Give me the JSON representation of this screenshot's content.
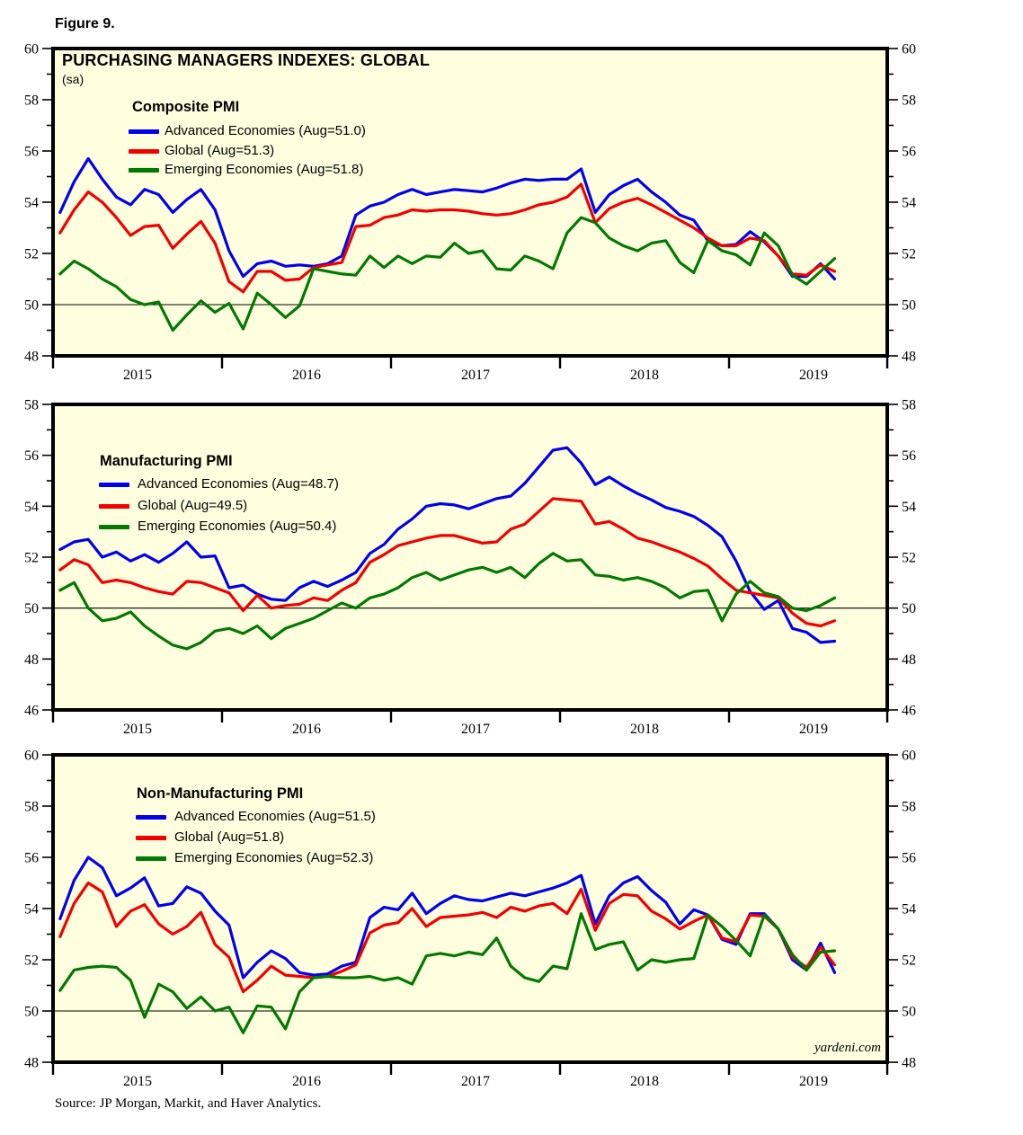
{
  "figure_label": "Figure 9.",
  "header": {
    "title": "PURCHASING MANAGERS INDEXES: GLOBAL",
    "subtitle": "(sa)"
  },
  "footer": {
    "source": "Source: JP Morgan, Markit, and Haver Analytics.",
    "watermark": "yardeni.com"
  },
  "colors": {
    "advanced": "#0101EC",
    "global": "#F20000",
    "emerging": "#017A01",
    "plot_background": "#FFFFDF",
    "axis": "#000000"
  },
  "x_axis": {
    "years": [
      "2015",
      "2016",
      "2017",
      "2018",
      "2019"
    ],
    "unit": "month",
    "start": "2015-01",
    "end": "2019-08"
  },
  "chart_data": [
    {
      "type": "line",
      "title": "Composite PMI",
      "ylim": [
        48,
        60
      ],
      "yticks": [
        48,
        50,
        52,
        54,
        56,
        58,
        60
      ],
      "baseline": 50,
      "grid": "baseline-only",
      "legend_position": "top-left-inside",
      "series": [
        {
          "name": "Advanced Economies (Aug=51.0)",
          "color": "#0101EC",
          "values": [
            53.6,
            54.8,
            55.7,
            54.9,
            54.2,
            53.9,
            54.5,
            54.3,
            53.6,
            54.1,
            54.5,
            53.7,
            52.1,
            51.1,
            51.6,
            51.7,
            51.5,
            51.55,
            51.5,
            51.6,
            51.9,
            53.5,
            53.85,
            54.0,
            54.3,
            54.5,
            54.3,
            54.4,
            54.5,
            54.45,
            54.4,
            54.55,
            54.75,
            54.9,
            54.85,
            54.9,
            54.9,
            55.3,
            53.6,
            54.3,
            54.65,
            54.9,
            54.4,
            54.0,
            53.5,
            53.3,
            52.5,
            52.3,
            52.35,
            52.85,
            52.45,
            51.9,
            51.1,
            51.1,
            51.6,
            51.0
          ]
        },
        {
          "name": "Global (Aug=51.3)",
          "color": "#F20000",
          "values": [
            52.8,
            53.7,
            54.4,
            54.0,
            53.4,
            52.7,
            53.05,
            53.1,
            52.2,
            52.75,
            53.25,
            52.4,
            50.9,
            50.5,
            51.3,
            51.3,
            50.95,
            51.0,
            51.45,
            51.55,
            51.65,
            53.05,
            53.1,
            53.4,
            53.5,
            53.7,
            53.65,
            53.7,
            53.7,
            53.65,
            53.55,
            53.5,
            53.55,
            53.7,
            53.9,
            54.0,
            54.2,
            54.7,
            53.2,
            53.75,
            54.0,
            54.15,
            53.9,
            53.6,
            53.3,
            53.0,
            52.6,
            52.3,
            52.3,
            52.6,
            52.5,
            51.9,
            51.2,
            51.15,
            51.55,
            51.3
          ]
        },
        {
          "name": "Emerging Economies (Aug=51.8)",
          "color": "#017A01",
          "values": [
            51.2,
            51.7,
            51.4,
            51.0,
            50.7,
            50.2,
            50.0,
            50.1,
            49.0,
            49.6,
            50.15,
            49.7,
            50.05,
            49.05,
            50.45,
            50.0,
            49.5,
            49.95,
            51.4,
            51.3,
            51.2,
            51.15,
            51.9,
            51.45,
            51.9,
            51.6,
            51.9,
            51.85,
            52.4,
            52.0,
            52.1,
            51.4,
            51.35,
            51.9,
            51.7,
            51.4,
            52.8,
            53.4,
            53.2,
            52.6,
            52.3,
            52.1,
            52.4,
            52.5,
            51.65,
            51.25,
            52.5,
            52.1,
            51.95,
            51.55,
            52.8,
            52.3,
            51.15,
            50.8,
            51.3,
            51.8
          ]
        }
      ]
    },
    {
      "type": "line",
      "title": "Manufacturing PMI",
      "ylim": [
        46,
        58
      ],
      "yticks": [
        46,
        48,
        50,
        52,
        54,
        56,
        58
      ],
      "baseline": 50,
      "grid": "baseline-only",
      "legend_position": "top-left-inside",
      "series": [
        {
          "name": "Advanced Economies (Aug=48.7)",
          "color": "#0101EC",
          "values": [
            52.3,
            52.6,
            52.7,
            52.0,
            52.2,
            51.85,
            52.1,
            51.8,
            52.15,
            52.6,
            52.0,
            52.05,
            50.8,
            50.9,
            50.55,
            50.35,
            50.3,
            50.8,
            51.05,
            50.85,
            51.1,
            51.4,
            52.15,
            52.5,
            53.1,
            53.5,
            54.0,
            54.1,
            54.05,
            53.9,
            54.1,
            54.3,
            54.4,
            54.9,
            55.55,
            56.2,
            56.3,
            55.7,
            54.85,
            55.15,
            54.8,
            54.5,
            54.25,
            53.95,
            53.8,
            53.6,
            53.25,
            52.8,
            51.85,
            50.65,
            49.95,
            50.3,
            49.2,
            49.05,
            48.65,
            48.7
          ]
        },
        {
          "name": "Global (Aug=49.5)",
          "color": "#F20000",
          "values": [
            51.5,
            51.9,
            51.7,
            51.0,
            51.1,
            51.0,
            50.8,
            50.65,
            50.55,
            51.05,
            51.0,
            50.8,
            50.6,
            49.9,
            50.5,
            50.0,
            50.1,
            50.15,
            50.4,
            50.3,
            50.7,
            51.0,
            51.8,
            52.1,
            52.45,
            52.6,
            52.75,
            52.85,
            52.85,
            52.7,
            52.55,
            52.6,
            53.1,
            53.3,
            53.8,
            54.3,
            54.25,
            54.2,
            53.3,
            53.4,
            53.1,
            52.75,
            52.6,
            52.4,
            52.2,
            51.95,
            51.65,
            51.15,
            50.7,
            50.6,
            50.5,
            50.4,
            49.8,
            49.4,
            49.3,
            49.5
          ]
        },
        {
          "name": "Emerging Economies (Aug=50.4)",
          "color": "#017A01",
          "values": [
            50.7,
            51.0,
            50.0,
            49.5,
            49.6,
            49.85,
            49.3,
            48.9,
            48.55,
            48.4,
            48.65,
            49.1,
            49.2,
            49.0,
            49.3,
            48.8,
            49.2,
            49.4,
            49.6,
            49.9,
            50.2,
            50.0,
            50.4,
            50.55,
            50.8,
            51.2,
            51.4,
            51.1,
            51.3,
            51.5,
            51.6,
            51.4,
            51.6,
            51.2,
            51.75,
            52.15,
            51.85,
            51.9,
            51.3,
            51.25,
            51.1,
            51.2,
            51.05,
            50.8,
            50.4,
            50.65,
            50.7,
            49.5,
            50.55,
            51.05,
            50.6,
            50.45,
            50.0,
            49.9,
            50.1,
            50.4
          ]
        }
      ]
    },
    {
      "type": "line",
      "title": "Non-Manufacturing PMI",
      "ylim": [
        48,
        60
      ],
      "yticks": [
        48,
        50,
        52,
        54,
        56,
        58,
        60
      ],
      "baseline": 50,
      "grid": "baseline-only",
      "legend_position": "top-left-inside",
      "series": [
        {
          "name": "Advanced Economies (Aug=51.5)",
          "color": "#0101EC",
          "values": [
            53.6,
            55.1,
            56.0,
            55.6,
            54.5,
            54.8,
            55.2,
            54.1,
            54.2,
            54.85,
            54.6,
            53.9,
            53.35,
            51.3,
            51.9,
            52.35,
            52.05,
            51.5,
            51.4,
            51.45,
            51.75,
            51.9,
            53.65,
            54.05,
            53.95,
            54.6,
            53.8,
            54.2,
            54.5,
            54.35,
            54.3,
            54.45,
            54.6,
            54.5,
            54.65,
            54.8,
            55.0,
            55.3,
            53.4,
            54.5,
            55.0,
            55.25,
            54.7,
            54.25,
            53.4,
            53.95,
            53.75,
            52.8,
            52.6,
            53.8,
            53.8,
            53.2,
            52.0,
            51.6,
            52.65,
            51.5
          ]
        },
        {
          "name": "Global (Aug=51.8)",
          "color": "#F20000",
          "values": [
            52.9,
            54.2,
            55.0,
            54.65,
            53.3,
            53.9,
            54.15,
            53.4,
            53.0,
            53.3,
            53.85,
            52.6,
            52.1,
            50.75,
            51.2,
            51.75,
            51.4,
            51.35,
            51.3,
            51.35,
            51.55,
            51.8,
            53.05,
            53.35,
            53.45,
            54.0,
            53.3,
            53.65,
            53.7,
            53.75,
            53.85,
            53.65,
            54.05,
            53.9,
            54.1,
            54.2,
            53.8,
            54.75,
            53.15,
            54.2,
            54.55,
            54.5,
            53.9,
            53.6,
            53.2,
            53.5,
            53.75,
            52.85,
            52.7,
            53.75,
            53.7,
            53.2,
            52.1,
            51.7,
            52.5,
            51.8
          ]
        },
        {
          "name": "Emerging Economies (Aug=52.3)",
          "color": "#017A01",
          "values": [
            50.8,
            51.6,
            51.7,
            51.75,
            51.7,
            51.2,
            49.75,
            51.05,
            50.75,
            50.1,
            50.55,
            50.0,
            50.15,
            49.15,
            50.2,
            50.15,
            49.3,
            50.75,
            51.3,
            51.35,
            51.3,
            51.3,
            51.35,
            51.2,
            51.3,
            51.05,
            52.15,
            52.25,
            52.15,
            52.3,
            52.2,
            52.85,
            51.75,
            51.3,
            51.15,
            51.75,
            51.65,
            53.8,
            52.4,
            52.6,
            52.7,
            51.6,
            52.0,
            51.9,
            52.0,
            52.05,
            53.75,
            53.3,
            52.75,
            52.15,
            53.75,
            53.2,
            52.2,
            51.6,
            52.3,
            52.35
          ]
        }
      ]
    }
  ]
}
